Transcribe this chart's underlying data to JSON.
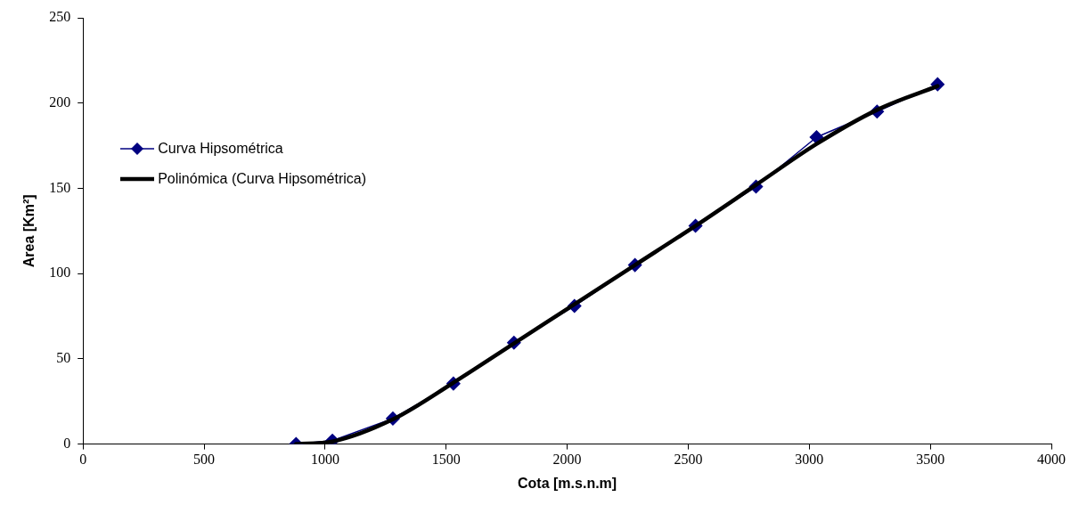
{
  "chart_data": {
    "type": "line",
    "xlabel": "Cota [m.s.n.m]",
    "ylabel": "Area [Km²]",
    "x": [
      880,
      1030,
      1280,
      1530,
      1780,
      2030,
      2280,
      2530,
      2780,
      3030,
      3280,
      3530
    ],
    "series": [
      {
        "name": "Curva Hipsométrica",
        "color": "#000080",
        "marker": "diamond",
        "values": [
          0,
          2,
          15,
          35.5,
          59.5,
          81,
          105,
          128,
          151,
          180,
          195,
          211
        ]
      },
      {
        "name": "Polinómica (Curva Hipsométrica)",
        "color": "#000000",
        "marker": "none",
        "x": [
          880,
          1030,
          1280,
          1530,
          1780,
          2030,
          2280,
          2530,
          2780,
          3030,
          3280,
          3530
        ],
        "values": [
          0,
          1.5,
          14.5,
          36,
          59,
          82,
          105,
          128,
          152,
          176,
          196,
          210
        ]
      }
    ],
    "xlim": [
      0,
      4000
    ],
    "xticks": [
      0,
      500,
      1000,
      1500,
      2000,
      2500,
      3000,
      3500,
      4000
    ],
    "ylim": [
      0,
      250
    ],
    "yticks": [
      0,
      50,
      100,
      150,
      200,
      250
    ],
    "grid": false,
    "legend": "left",
    "line_style": "solid"
  }
}
